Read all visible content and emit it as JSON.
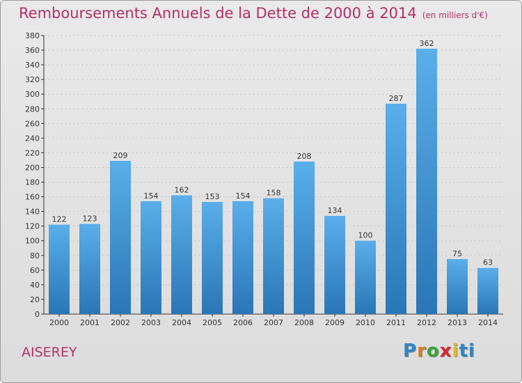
{
  "header": {
    "title": "Remboursements Annuels de la Dette de 2000 à 2014",
    "unit": "(en milliers d'€)"
  },
  "commune": "AISEREY",
  "logo": {
    "letters": [
      "P",
      "r",
      "o",
      "x",
      "i",
      "ti"
    ]
  },
  "colors": {
    "bar_light": "#5aaeea",
    "bar_dark": "#2a76b6",
    "axis": "#333333",
    "grid": "#cccccc",
    "title": "#b0306a"
  },
  "chart_data": {
    "type": "bar",
    "title": "Remboursements Annuels de la Dette de 2000 à 2014",
    "ylabel": "en milliers d'€",
    "xlabel": "",
    "ylim": [
      0,
      380
    ],
    "ytick_step": 20,
    "categories": [
      "2000",
      "2001",
      "2002",
      "2003",
      "2004",
      "2005",
      "2006",
      "2007",
      "2008",
      "2009",
      "2010",
      "2011",
      "2012",
      "2013",
      "2014"
    ],
    "values": [
      122,
      123,
      209,
      154,
      162,
      153,
      154,
      158,
      208,
      134,
      100,
      287,
      362,
      75,
      63
    ]
  }
}
